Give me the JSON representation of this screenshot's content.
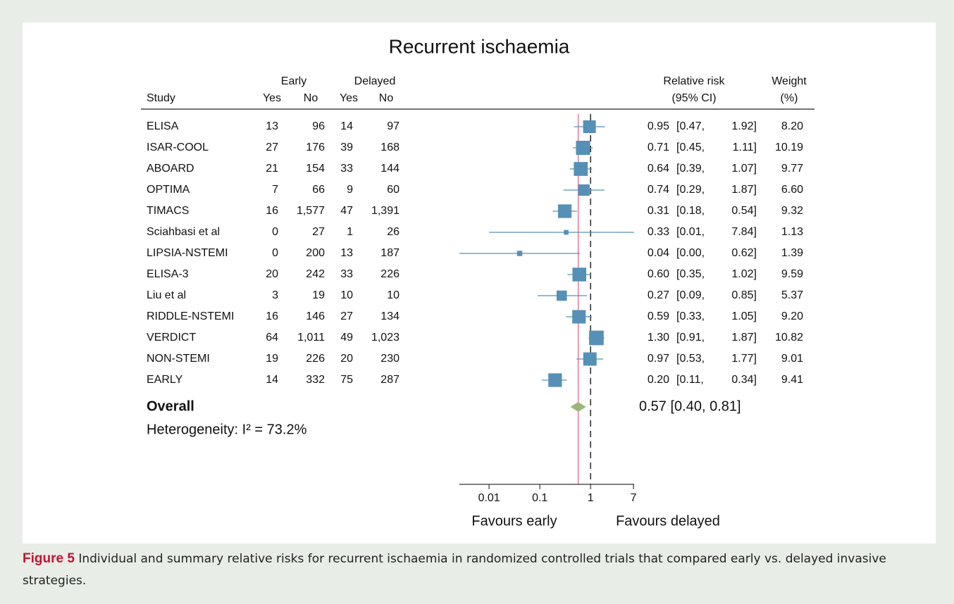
{
  "chart_data": {
    "type": "forest",
    "title": "Recurrent ischaemia",
    "header": {
      "study": "Study",
      "early": "Early",
      "delayed": "Delayed",
      "yes": "Yes",
      "no": "No",
      "rr": "Relative risk",
      "ci": "(95% CI)",
      "weight": "Weight",
      "weight_unit": "(%)"
    },
    "rows": [
      [
        "ELISA",
        "13",
        "96",
        "14",
        "97"
      ],
      [
        "ISAR-COOL",
        "27",
        "176",
        "39",
        "168"
      ],
      [
        "ABOARD",
        "21",
        "154",
        "33",
        "144"
      ],
      [
        "OPTIMA",
        "7",
        "66",
        "9",
        "60"
      ],
      [
        "TIMACS",
        "16",
        "1,577",
        "47",
        "1,391"
      ],
      [
        "Sciahbasi et al",
        "0",
        "27",
        "1",
        "26"
      ],
      [
        "LIPSIA-NSTEMI",
        "0",
        "200",
        "13",
        "187"
      ],
      [
        "ELISA-3",
        "20",
        "242",
        "33",
        "226"
      ],
      [
        "Liu et al",
        "3",
        "19",
        "10",
        "10"
      ],
      [
        "RIDDLE-NSTEMI",
        "16",
        "146",
        "27",
        "134"
      ],
      [
        "VERDICT",
        "64",
        "1,011",
        "49",
        "1,023"
      ],
      [
        "NON-STEMI",
        "19",
        "226",
        "20",
        "230"
      ],
      [
        "EARLY",
        "14",
        "332",
        "75",
        "287"
      ]
    ],
    "series": [
      {
        "color": "#5690b6",
        "values": [
          0.95,
          0.71,
          0.64,
          0.74,
          0.31,
          0.33,
          0.04,
          0.6,
          0.27,
          0.59,
          1.3,
          0.97,
          0.2
        ],
        "value_labels": [
          "0.95",
          "0.71",
          "0.64",
          "0.74",
          "0.31",
          "0.33",
          "0.04",
          "0.60",
          "0.27",
          "0.59",
          "1.30",
          "0.97",
          "0.20"
        ],
        "lower": [
          0.47,
          0.45,
          0.39,
          0.29,
          0.18,
          0.01,
          0,
          0.35,
          0.09,
          0.33,
          0.91,
          0.53,
          0.11
        ],
        "lower_labels": [
          "[0.47,",
          "[0.45,",
          "[0.39,",
          "[0.29,",
          "[0.18,",
          "[0.01,",
          "[0.00,",
          "[0.35,",
          "[0.09,",
          "[0.33,",
          "[0.91,",
          "[0.53,",
          "[0.11,"
        ],
        "upper": [
          1.92,
          1.11,
          1.07,
          1.87,
          0.54,
          7.84,
          0.62,
          1.02,
          0.85,
          1.05,
          1.87,
          1.77,
          0.34
        ],
        "upper_labels": [
          "1.92]",
          "1.11]",
          "1.07]",
          "1.87]",
          "0.54]",
          "7.84]",
          "0.62]",
          "1.02]",
          "0.85]",
          "1.05]",
          "1.87]",
          "1.77]",
          "0.34]"
        ],
        "weights": [
          8.2,
          10.19,
          9.77,
          6.6,
          9.32,
          1.13,
          1.39,
          9.59,
          5.37,
          9.2,
          10.82,
          9.01,
          9.41
        ],
        "weight_labels": [
          "8.20",
          "10.19",
          "9.77",
          "6.60",
          "9.32",
          "1.13",
          "1.39",
          "9.59",
          "5.37",
          "9.20",
          "10.82",
          "9.01",
          "9.41"
        ]
      }
    ],
    "overall": {
      "name": "Overall",
      "value": 0.57,
      "lower": 0.4,
      "upper": 0.81,
      "label": "0.57 [0.40, 0.81]",
      "color": "#9db57a",
      "line_color": "#e26d8a"
    },
    "heterogeneity": "Heterogeneity: I² = 73.2%",
    "reference": 1,
    "xscale": "log",
    "xlim": [
      0.0026,
      7.2
    ],
    "xticks": [
      0.01,
      0.1,
      1,
      7
    ],
    "xlabel_left": "Favours early",
    "xlabel_right": "Favours delayed"
  },
  "figure": {
    "label": "Figure 5",
    "caption": "Individual and summary relative risks for recurrent ischaemia in randomized controlled trials that compared early vs. delayed invasive strategies."
  }
}
